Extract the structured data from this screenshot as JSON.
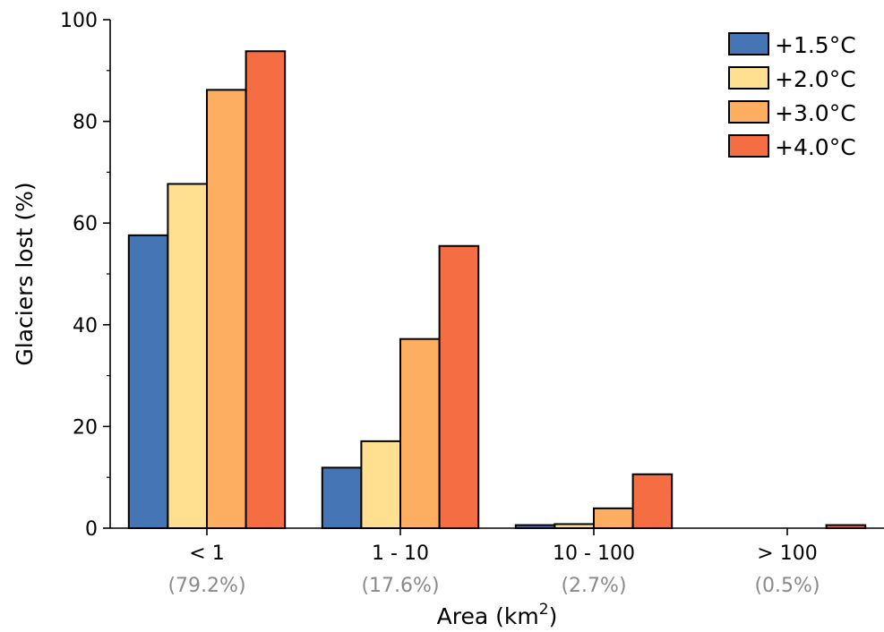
{
  "chart_data": {
    "type": "bar",
    "ylabel": "Glaciers lost (%)",
    "xlabel": "Area (km",
    "xlabel_sup": "2",
    "xlabel_end": ")",
    "ylim": [
      0,
      100
    ],
    "yticks": [
      "0",
      "20",
      "40",
      "60",
      "80",
      "100"
    ],
    "yticks_values": [
      0,
      20,
      40,
      60,
      80,
      100
    ],
    "grid": false,
    "legend_position": "top-right",
    "categories": [
      "< 1",
      "1 - 10",
      "10 - 100",
      "> 100"
    ],
    "category_shares": [
      "(79.2%)",
      "(17.6%)",
      "(2.7%)",
      "(0.5%)"
    ],
    "series": [
      {
        "name": "+1.5°C",
        "color": "#4575b4",
        "values": [
          57.6,
          11.9,
          0.6,
          0.0
        ]
      },
      {
        "name": "+2.0°C",
        "color": "#fee090",
        "values": [
          67.7,
          17.1,
          0.8,
          0.0
        ]
      },
      {
        "name": "+3.0°C",
        "color": "#fdae61",
        "values": [
          86.2,
          37.2,
          3.9,
          0.0
        ]
      },
      {
        "name": "+4.0°C",
        "color": "#f46d43",
        "values": [
          93.8,
          55.5,
          10.6,
          0.6
        ]
      }
    ]
  }
}
